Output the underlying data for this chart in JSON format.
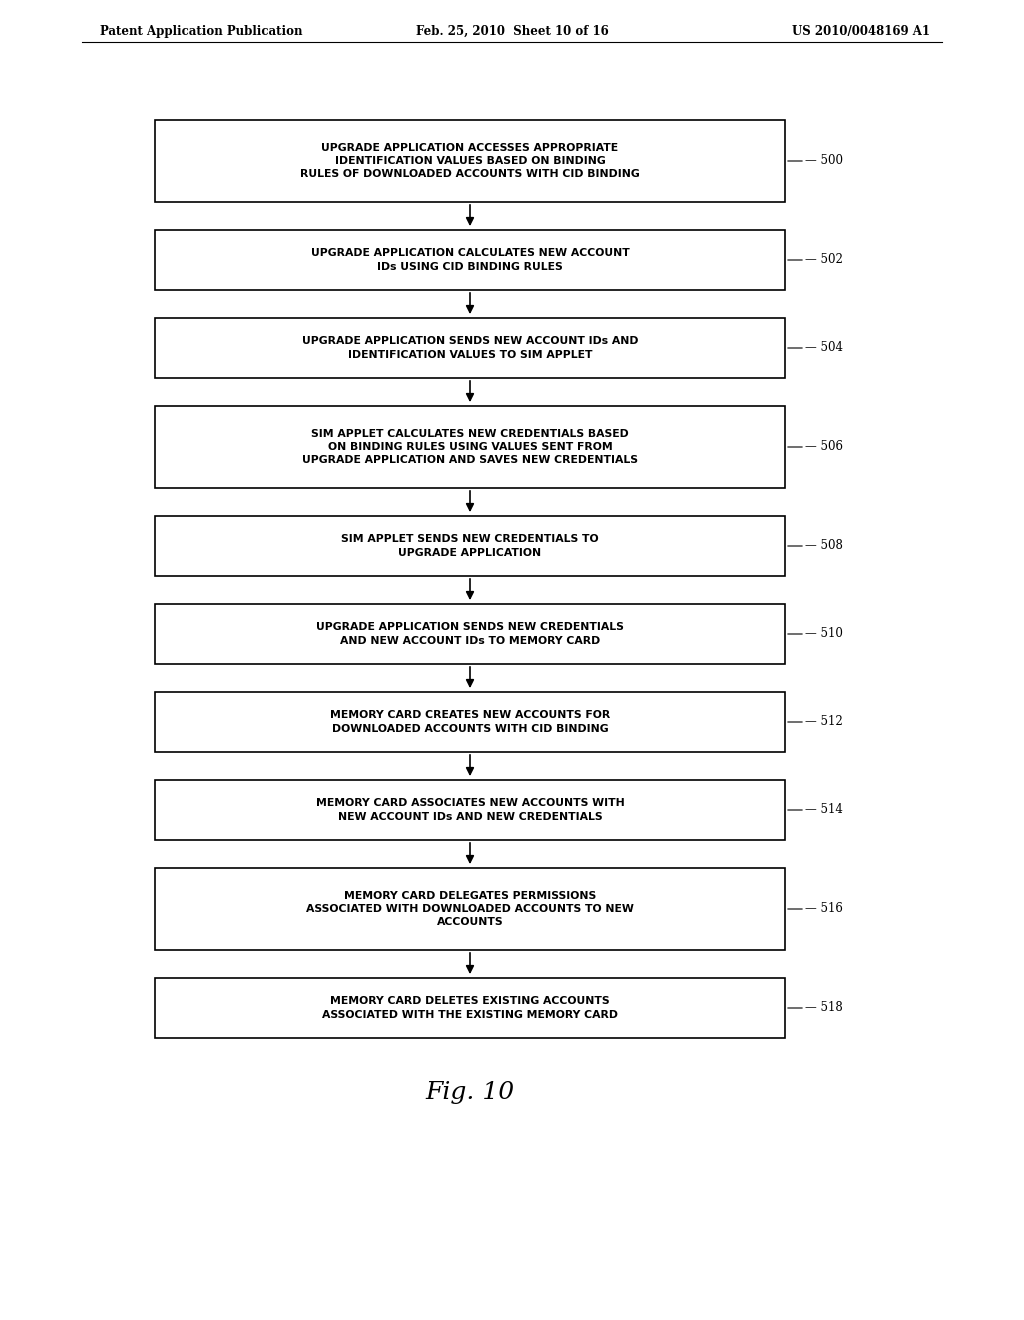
{
  "bg_color": "#ffffff",
  "header_left": "Patent Application Publication",
  "header_mid": "Feb. 25, 2010  Sheet 10 of 16",
  "header_right": "US 2010/0048169 A1",
  "figure_label": "Fig. 10",
  "boxes": [
    {
      "id": 500,
      "label": "UPGRADE APPLICATION ACCESSES APPROPRIATE\nIDENTIFICATION VALUES BASED ON BINDING\nRULES OF DOWNLOADED ACCOUNTS WITH CID BINDING",
      "num_lines": 3
    },
    {
      "id": 502,
      "label": "UPGRADE APPLICATION CALCULATES NEW ACCOUNT\nIDs USING CID BINDING RULES",
      "num_lines": 2
    },
    {
      "id": 504,
      "label": "UPGRADE APPLICATION SENDS NEW ACCOUNT IDs AND\nIDENTIFICATION VALUES TO SIM APPLET",
      "num_lines": 2
    },
    {
      "id": 506,
      "label": "SIM APPLET CALCULATES NEW CREDENTIALS BASED\nON BINDING RULES USING VALUES SENT FROM\nUPGRADE APPLICATION AND SAVES NEW CREDENTIALS",
      "num_lines": 3
    },
    {
      "id": 508,
      "label": "SIM APPLET SENDS NEW CREDENTIALS TO\nUPGRADE APPLICATION",
      "num_lines": 2
    },
    {
      "id": 510,
      "label": "UPGRADE APPLICATION SENDS NEW CREDENTIALS\nAND NEW ACCOUNT IDs TO MEMORY CARD",
      "num_lines": 2
    },
    {
      "id": 512,
      "label": "MEMORY CARD CREATES NEW ACCOUNTS FOR\nDOWNLOADED ACCOUNTS WITH CID BINDING",
      "num_lines": 2
    },
    {
      "id": 514,
      "label": "MEMORY CARD ASSOCIATES NEW ACCOUNTS WITH\nNEW ACCOUNT IDs AND NEW CREDENTIALS",
      "num_lines": 2
    },
    {
      "id": 516,
      "label": "MEMORY CARD DELEGATES PERMISSIONS\nASSOCIATED WITH DOWNLOADED ACCOUNTS TO NEW\nACCOUNTS",
      "num_lines": 3
    },
    {
      "id": 518,
      "label": "MEMORY CARD DELETES EXISTING ACCOUNTS\nASSOCIATED WITH THE EXISTING MEMORY CARD",
      "num_lines": 2
    }
  ],
  "box_color": "#ffffff",
  "box_edge_color": "#000000",
  "text_color": "#000000",
  "arrow_color": "#000000",
  "label_color": "#000000"
}
